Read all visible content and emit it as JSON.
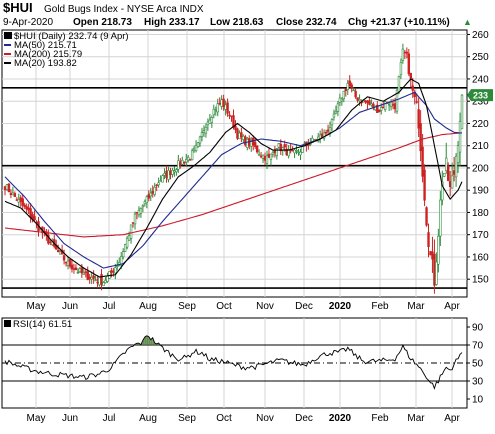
{
  "header": {
    "symbol": "$HUI",
    "name": "Gold Bugs Index - NYSE Arca INDX",
    "date": "9-Apr-2020",
    "open": "Open 218.73",
    "high": "High 233.17",
    "low": "Low 218.63",
    "close": "Close 232.74",
    "chg": "Chg +21.37 (+10.11%)",
    "chg_arrow": "▲"
  },
  "legend": {
    "main": "$HUI (Daily) 232.74 (9 Apr)",
    "ma50": "MA(50) 215.71",
    "ma200": "MA(200) 215.79",
    "ma20": "MA(20) 193.82",
    "rsi": "RSI(14) 61.51"
  },
  "colors": {
    "up": "#2c8a3a",
    "down": "#cc2222",
    "ma50": "#1f2a8f",
    "ma200": "#cc1a2a",
    "ma20": "#000000",
    "grid": "#d4d4d4",
    "rsi_fill": "#4d7a3a"
  },
  "chart_data": [
    {
      "type": "candlestick",
      "title": "$HUI (Daily)",
      "ylim": [
        142,
        262
      ],
      "y_ticks": [
        150,
        160,
        170,
        180,
        190,
        200,
        210,
        220,
        230,
        240,
        250,
        260
      ],
      "x_ticks": [
        "May",
        "Jun",
        "Jul",
        "Aug",
        "Sep",
        "Oct",
        "Nov",
        "Dec",
        "2020",
        "Feb",
        "Mar",
        "Apr"
      ],
      "horizontal_lines": [
        236,
        201,
        146
      ],
      "series_keypoints": {
        "close": [
          [
            0,
            192
          ],
          [
            6,
            186
          ],
          [
            12,
            180
          ],
          [
            18,
            172
          ],
          [
            26,
            163
          ],
          [
            32,
            157
          ],
          [
            40,
            152
          ],
          [
            46,
            150
          ],
          [
            50,
            149
          ],
          [
            54,
            153
          ],
          [
            58,
            158
          ],
          [
            62,
            168
          ],
          [
            66,
            178
          ],
          [
            70,
            183
          ],
          [
            74,
            188
          ],
          [
            78,
            194
          ],
          [
            82,
            197
          ],
          [
            86,
            200
          ],
          [
            90,
            203
          ],
          [
            94,
            205
          ],
          [
            98,
            210
          ],
          [
            102,
            220
          ],
          [
            106,
            226
          ],
          [
            110,
            230
          ],
          [
            114,
            224
          ],
          [
            118,
            215
          ],
          [
            122,
            212
          ],
          [
            126,
            210
          ],
          [
            130,
            206
          ],
          [
            134,
            204
          ],
          [
            138,
            210
          ],
          [
            142,
            208
          ],
          [
            146,
            206
          ],
          [
            150,
            208
          ],
          [
            154,
            211
          ],
          [
            158,
            213
          ],
          [
            162,
            215
          ],
          [
            166,
            220
          ],
          [
            170,
            230
          ],
          [
            174,
            238
          ],
          [
            178,
            232
          ],
          [
            182,
            230
          ],
          [
            186,
            228
          ],
          [
            190,
            226
          ],
          [
            194,
            230
          ],
          [
            198,
            228
          ],
          [
            202,
            252
          ],
          [
            204,
            250
          ],
          [
            206,
            238
          ],
          [
            210,
            222
          ],
          [
            212,
            200
          ],
          [
            214,
            178
          ],
          [
            216,
            160
          ],
          [
            218,
            150
          ],
          [
            220,
            172
          ],
          [
            222,
            196
          ],
          [
            224,
            200
          ],
          [
            226,
            190
          ],
          [
            228,
            198
          ],
          [
            230,
            214
          ],
          [
            232,
            232.7
          ]
        ],
        "ma50": [
          [
            0,
            196
          ],
          [
            10,
            187
          ],
          [
            20,
            176
          ],
          [
            30,
            166
          ],
          [
            40,
            160
          ],
          [
            50,
            155
          ],
          [
            60,
            157
          ],
          [
            70,
            165
          ],
          [
            80,
            176
          ],
          [
            90,
            186
          ],
          [
            100,
            196
          ],
          [
            110,
            206
          ],
          [
            120,
            211
          ],
          [
            130,
            213
          ],
          [
            140,
            212
          ],
          [
            150,
            210
          ],
          [
            160,
            213
          ],
          [
            170,
            218
          ],
          [
            180,
            225
          ],
          [
            190,
            228
          ],
          [
            200,
            231
          ],
          [
            208,
            234
          ],
          [
            214,
            228
          ],
          [
            218,
            222
          ],
          [
            224,
            218
          ],
          [
            228,
            216
          ],
          [
            232,
            215.7
          ]
        ],
        "ma200": [
          [
            0,
            173
          ],
          [
            20,
            171
          ],
          [
            40,
            169
          ],
          [
            60,
            170
          ],
          [
            80,
            174
          ],
          [
            100,
            179
          ],
          [
            120,
            185
          ],
          [
            140,
            191
          ],
          [
            160,
            197
          ],
          [
            180,
            203
          ],
          [
            200,
            209
          ],
          [
            212,
            213
          ],
          [
            222,
            215
          ],
          [
            232,
            215.8
          ]
        ],
        "ma20": [
          [
            0,
            185
          ],
          [
            8,
            182
          ],
          [
            16,
            175
          ],
          [
            24,
            167
          ],
          [
            32,
            160
          ],
          [
            40,
            155
          ],
          [
            48,
            151
          ],
          [
            56,
            152
          ],
          [
            64,
            161
          ],
          [
            72,
            173
          ],
          [
            80,
            186
          ],
          [
            88,
            196
          ],
          [
            96,
            201
          ],
          [
            104,
            207
          ],
          [
            112,
            216
          ],
          [
            118,
            220
          ],
          [
            124,
            216
          ],
          [
            130,
            211
          ],
          [
            136,
            208
          ],
          [
            144,
            208
          ],
          [
            152,
            210
          ],
          [
            160,
            213
          ],
          [
            168,
            217
          ],
          [
            176,
            226
          ],
          [
            184,
            232
          ],
          [
            192,
            230
          ],
          [
            200,
            234
          ],
          [
            206,
            240
          ],
          [
            210,
            238
          ],
          [
            214,
            228
          ],
          [
            218,
            210
          ],
          [
            222,
            192
          ],
          [
            226,
            186
          ],
          [
            230,
            190
          ],
          [
            232,
            193.8
          ]
        ]
      },
      "last_close": 232.74
    },
    {
      "type": "line",
      "title": "RSI(14)",
      "ylim": [
        0,
        100
      ],
      "y_ticks": [
        10,
        30,
        50,
        70,
        90
      ],
      "x_ticks": [
        "May",
        "Jun",
        "Jul",
        "Aug",
        "Sep",
        "Oct",
        "Nov",
        "Dec",
        "2020",
        "Feb",
        "Mar",
        "Apr"
      ],
      "reference_lines": [
        70,
        50,
        30
      ],
      "series_keypoints": [
        [
          0,
          52
        ],
        [
          8,
          46
        ],
        [
          16,
          41
        ],
        [
          24,
          38
        ],
        [
          32,
          36
        ],
        [
          40,
          34
        ],
        [
          48,
          38
        ],
        [
          54,
          45
        ],
        [
          58,
          55
        ],
        [
          62,
          64
        ],
        [
          66,
          70
        ],
        [
          70,
          73
        ],
        [
          72,
          82
        ],
        [
          74,
          78
        ],
        [
          78,
          70
        ],
        [
          84,
          60
        ],
        [
          88,
          55
        ],
        [
          92,
          56
        ],
        [
          96,
          63
        ],
        [
          100,
          61
        ],
        [
          104,
          54
        ],
        [
          110,
          52
        ],
        [
          116,
          48
        ],
        [
          122,
          45
        ],
        [
          128,
          46
        ],
        [
          134,
          50
        ],
        [
          140,
          53
        ],
        [
          146,
          50
        ],
        [
          152,
          48
        ],
        [
          158,
          56
        ],
        [
          164,
          61
        ],
        [
          170,
          62
        ],
        [
          174,
          66
        ],
        [
          178,
          58
        ],
        [
          182,
          52
        ],
        [
          188,
          52
        ],
        [
          194,
          53
        ],
        [
          198,
          55
        ],
        [
          202,
          68
        ],
        [
          206,
          55
        ],
        [
          210,
          46
        ],
        [
          214,
          35
        ],
        [
          216,
          28
        ],
        [
          218,
          24
        ],
        [
          220,
          30
        ],
        [
          222,
          38
        ],
        [
          224,
          45
        ],
        [
          226,
          42
        ],
        [
          228,
          49
        ],
        [
          230,
          55
        ],
        [
          232,
          61.5
        ]
      ],
      "last_value": 61.51
    }
  ]
}
